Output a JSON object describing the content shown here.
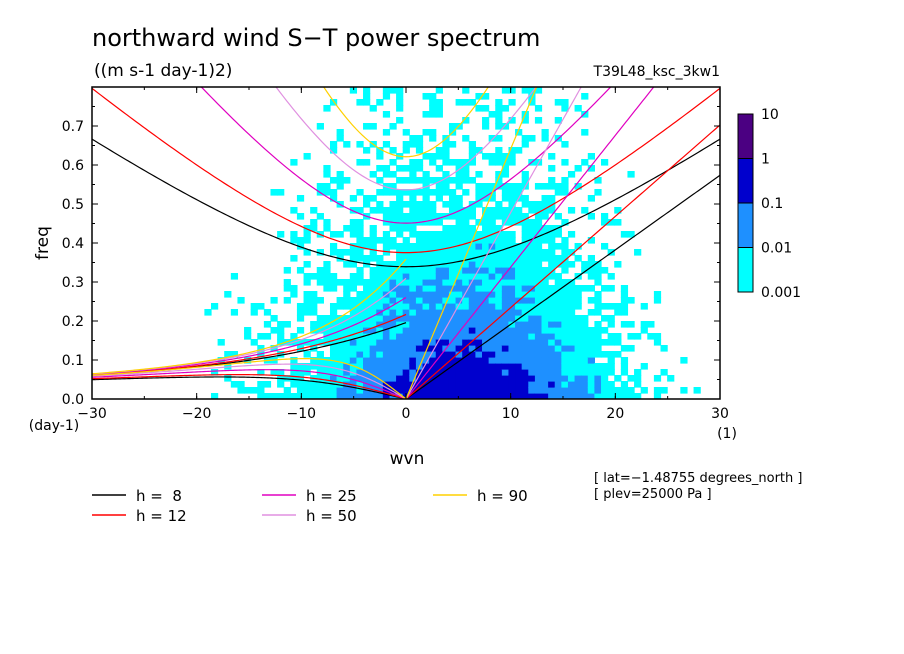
{
  "chart_data": {
    "type": "heatmap",
    "title": "northward wind S−T power spectrum",
    "subtitle": "((m s-1 day-1)2)",
    "run_label": "T39L48_ksc_3kw1",
    "xlabel": "wvn",
    "ylabel": "freq",
    "x_unit_label": "(1)",
    "y_unit_label": "(day-1)",
    "xlim": [
      -30,
      30
    ],
    "ylim": [
      0,
      0.8
    ],
    "x_ticks": [
      -30,
      -20,
      -10,
      0,
      10,
      20,
      30
    ],
    "x_tick_labels": [
      "−30",
      "−20",
      "−10",
      "0",
      "10",
      "20",
      "30"
    ],
    "y_ticks": [
      0.0,
      0.1,
      0.2,
      0.3,
      0.4,
      0.5,
      0.6,
      0.7
    ],
    "y_tick_labels": [
      "0.0",
      "0.1",
      "0.2",
      "0.3",
      "0.4",
      "0.5",
      "0.6",
      "0.7"
    ],
    "colorbar": {
      "scale": "log",
      "levels": [
        0.001,
        0.01,
        0.1,
        1,
        10
      ],
      "labels": [
        "0.001",
        "0.01",
        "0.1",
        "1",
        "10"
      ],
      "colors": [
        "#00ffff",
        "#1e90ff",
        "#0000cd",
        "#4b0082"
      ]
    },
    "dispersion_curves": [
      {
        "name": "h =  8",
        "h": 8,
        "color": "#000000"
      },
      {
        "name": "h = 12",
        "h": 12,
        "color": "#ff0000"
      },
      {
        "name": "h = 25",
        "h": 25,
        "color": "#e000c0"
      },
      {
        "name": "h = 50",
        "h": 50,
        "color": "#e090e0"
      },
      {
        "name": "h = 90",
        "h": 90,
        "color": "#ffd000"
      }
    ],
    "annotations": [
      "[ lat=−1.48755 degrees_north ]",
      "[ plev=25000 Pa ]"
    ]
  }
}
